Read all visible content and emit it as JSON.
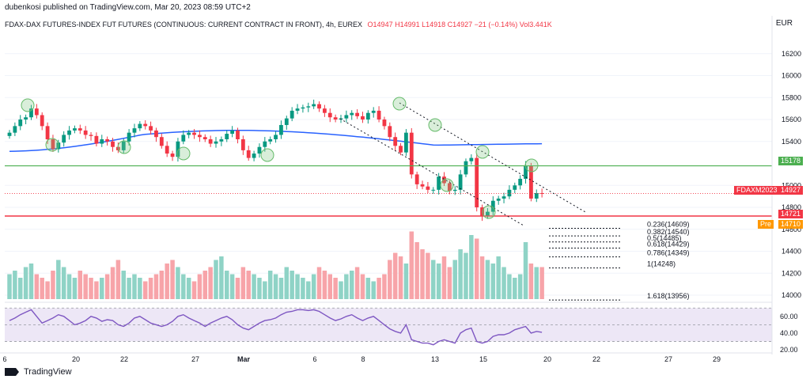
{
  "header": {
    "publisher_line": "dubenkosi published on TradingView.com, Mar 20, 2023 08:59 UTC+2"
  },
  "legend": {
    "symbol": "FDAX-DAX FUTURES-INDEX FUT FUTURES (CONTINUOUS: CURRENT CONTRACT IN FRONT), 4h, EUREX",
    "ohlc": "O14947  H14991  L14918  C14927  −21 (−0.14%)  Vol3.441K"
  },
  "currency": "EUR",
  "footer": {
    "brand": "TradingView"
  },
  "tags": {
    "green_level": "15178",
    "symbol_label": "FDAXM2023",
    "symbol_price": "14927",
    "red_level": "14721",
    "pre_label": "Pre",
    "pre_price": "14710"
  },
  "colors": {
    "up": "#089981",
    "down": "#f23645",
    "ma": "#2962ff",
    "green_line": "#4caf50",
    "red_line": "#f23645",
    "rsi": "#7e57c2",
    "rsi_band": "#ede7f6",
    "vol_up": "#8fd3c6",
    "vol_down": "#f7a4a9"
  },
  "chart_data": [
    {
      "type": "candlestick",
      "title": "",
      "ylim": [
        13950,
        16400
      ],
      "y_ticks": [
        "16200",
        "16000",
        "15800",
        "15600",
        "15400",
        "15000",
        "14800",
        "14600",
        "14400",
        "14200",
        "14000"
      ],
      "x_ticks": [
        "6",
        "20",
        "22",
        "27",
        "Mar",
        "6",
        "8",
        "13",
        "15",
        "20",
        "22",
        "27",
        "29"
      ],
      "closes": [
        15480,
        15540,
        15600,
        15620,
        15700,
        15640,
        15540,
        15420,
        15330,
        15390,
        15460,
        15500,
        15520,
        15500,
        15460,
        15450,
        15380,
        15420,
        15400,
        15350,
        15320,
        15400,
        15480,
        15520,
        15560,
        15540,
        15500,
        15440,
        15360,
        15290,
        15260,
        15400,
        15460,
        15480,
        15460,
        15440,
        15420,
        15380,
        15400,
        15420,
        15470,
        15500,
        15420,
        15320,
        15250,
        15290,
        15350,
        15400,
        15420,
        15460,
        15550,
        15610,
        15680,
        15700,
        15710,
        15720,
        15740,
        15700,
        15660,
        15620,
        15600,
        15610,
        15640,
        15660,
        15630,
        15600,
        15660,
        15680,
        15600,
        15540,
        15440,
        15360,
        15300,
        15480,
        15100,
        15010,
        14990,
        14960,
        14960,
        15080,
        15020,
        14950,
        14960,
        15100,
        15220,
        15250,
        14800,
        14720,
        14760,
        14860,
        14880,
        14900,
        14960,
        15000,
        15060,
        15180,
        14880,
        14930,
        14927
      ],
      "moving_average": {
        "start": 15310,
        "end": 15380,
        "peak": 15490
      },
      "horizontal_levels": [
        15178,
        14721
      ],
      "fibonacci": [
        {
          "label": "0.236(14609)",
          "value": 14609
        },
        {
          "label": "0.382(14540)",
          "value": 14540
        },
        {
          "label": "0.5(14485)",
          "value": 14485
        },
        {
          "label": "0.618(14429)",
          "value": 14429
        },
        {
          "label": "0.786(14349)",
          "value": 14349
        },
        {
          "label": "1(14248)",
          "value": 14248
        },
        {
          "label": "1.618(13956)",
          "value": 13956
        }
      ]
    },
    {
      "type": "bar",
      "title": "Volume",
      "values": [
        0.35,
        0.4,
        0.3,
        0.45,
        0.5,
        0.35,
        0.3,
        0.25,
        0.4,
        0.55,
        0.45,
        0.35,
        0.3,
        0.4,
        0.35,
        0.3,
        0.25,
        0.3,
        0.35,
        0.45,
        0.55,
        0.4,
        0.3,
        0.35,
        0.3,
        0.25,
        0.3,
        0.35,
        0.4,
        0.5,
        0.55,
        0.45,
        0.35,
        0.3,
        0.25,
        0.35,
        0.4,
        0.45,
        0.55,
        0.6,
        0.4,
        0.35,
        0.3,
        0.45,
        0.4,
        0.35,
        0.3,
        0.25,
        0.4,
        0.35,
        0.3,
        0.45,
        0.4,
        0.35,
        0.3,
        0.25,
        0.35,
        0.45,
        0.4,
        0.35,
        0.3,
        0.25,
        0.35,
        0.4,
        0.45,
        0.35,
        0.3,
        0.25,
        0.3,
        0.35,
        0.55,
        0.65,
        0.6,
        0.5,
        0.95,
        0.8,
        0.7,
        0.65,
        0.55,
        0.5,
        0.6,
        0.45,
        0.55,
        0.7,
        0.65,
        0.9,
        0.85,
        0.6,
        0.55,
        0.5,
        0.6,
        0.45,
        0.35,
        0.3,
        0.35,
        0.8,
        0.5,
        0.45,
        0.45
      ]
    },
    {
      "type": "line",
      "title": "RSI",
      "ylim": [
        20,
        75
      ],
      "y_ticks": [
        "60.00",
        "40.00",
        "20.00"
      ],
      "values": [
        55,
        58,
        62,
        65,
        68,
        60,
        52,
        55,
        58,
        62,
        60,
        55,
        50,
        52,
        55,
        60,
        58,
        54,
        56,
        55,
        50,
        48,
        52,
        58,
        60,
        56,
        52,
        50,
        48,
        50,
        54,
        60,
        62,
        58,
        55,
        52,
        48,
        52,
        55,
        58,
        60,
        56,
        50,
        46,
        44,
        48,
        52,
        55,
        56,
        58,
        62,
        65,
        66,
        68,
        68,
        67,
        68,
        66,
        62,
        58,
        55,
        57,
        60,
        62,
        58,
        55,
        58,
        60,
        55,
        50,
        45,
        42,
        40,
        50,
        32,
        30,
        28,
        28,
        26,
        30,
        32,
        30,
        28,
        40,
        44,
        46,
        30,
        28,
        30,
        36,
        38,
        38,
        40,
        44,
        46,
        48,
        40,
        42,
        41
      ]
    }
  ]
}
